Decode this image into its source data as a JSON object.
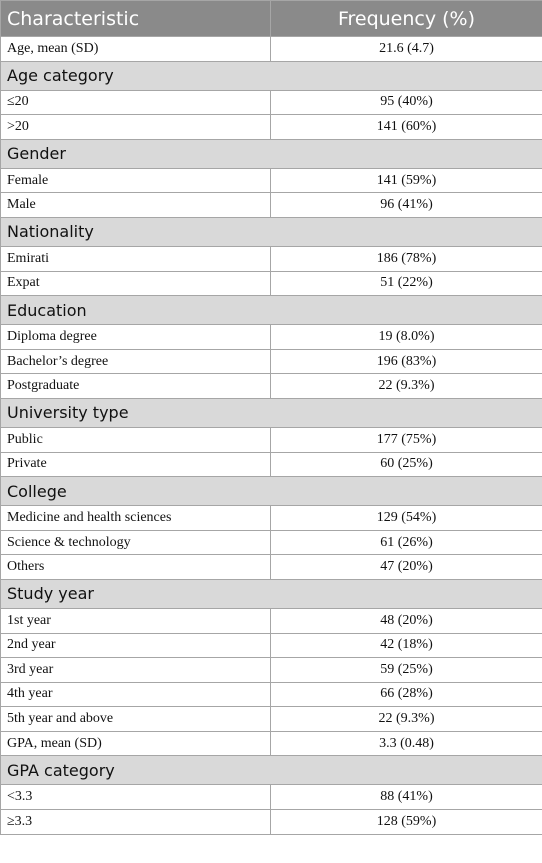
{
  "table": {
    "header": [
      "Characteristic",
      "Frequency (%)"
    ],
    "rows": [
      {
        "label": "Age, mean (SD)",
        "value": "21.6 (4.7)"
      },
      {
        "section": "Age category"
      },
      {
        "label": "≤20",
        "value": "95 (40%)"
      },
      {
        "label": ">20",
        "value": "141 (60%)"
      },
      {
        "section": "Gender"
      },
      {
        "label": "Female",
        "value": "141 (59%)"
      },
      {
        "label": "Male",
        "value": "96 (41%)"
      },
      {
        "section": "Nationality"
      },
      {
        "label": "Emirati",
        "value": "186 (78%)"
      },
      {
        "label": "Expat",
        "value": "51 (22%)"
      },
      {
        "section": "Education"
      },
      {
        "label": "Diploma degree",
        "value": "19 (8.0%)"
      },
      {
        "label": "Bachelor’s degree",
        "value": "196 (83%)"
      },
      {
        "label": "Postgraduate",
        "value": "22 (9.3%)"
      },
      {
        "section": "University type"
      },
      {
        "label": "Public",
        "value": "177 (75%)"
      },
      {
        "label": "Private",
        "value": "60 (25%)"
      },
      {
        "section": "College"
      },
      {
        "label": "Medicine and health sciences",
        "value": "129 (54%)"
      },
      {
        "label": "Science & technology",
        "value": "61 (26%)"
      },
      {
        "label": "Others",
        "value": "47 (20%)"
      },
      {
        "section": "Study year"
      },
      {
        "label": "1st year",
        "value": "48 (20%)"
      },
      {
        "label": "2nd year",
        "value": "42 (18%)"
      },
      {
        "label": "3rd year",
        "value": "59 (25%)"
      },
      {
        "label": "4th year",
        "value": "66 (28%)"
      },
      {
        "label": "5th year and above",
        "value": "22 (9.3%)"
      },
      {
        "label": "GPA, mean (SD)",
        "value": "3.3 (0.48)"
      },
      {
        "section": "GPA category"
      },
      {
        "label": "<3.3",
        "value": "88 (41%)"
      },
      {
        "label": "≥3.3",
        "value": "128 (59%)"
      }
    ]
  }
}
